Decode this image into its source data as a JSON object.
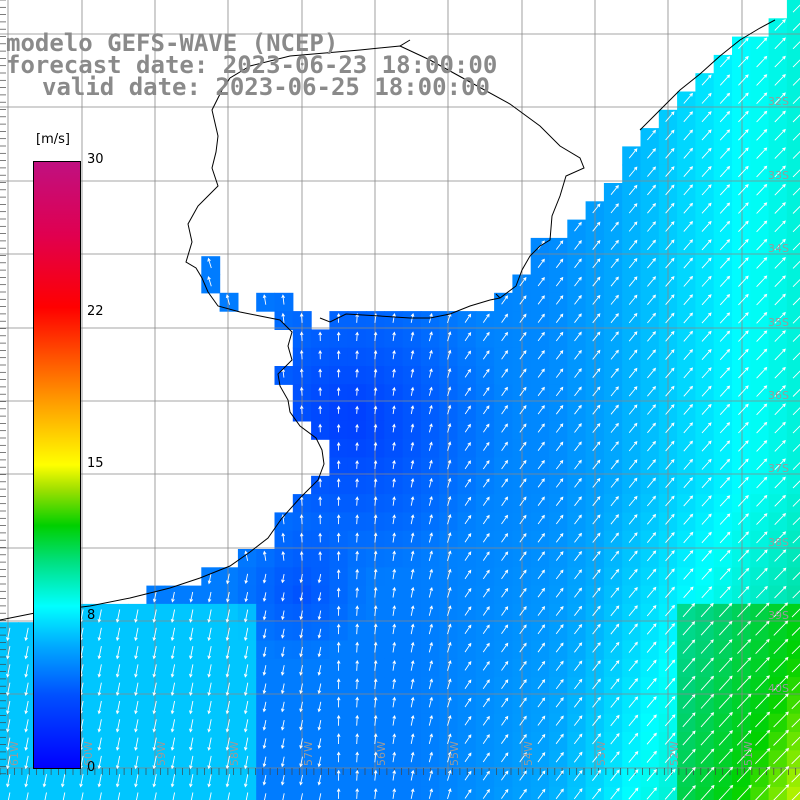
{
  "title": {
    "model": "modelo GEFS-WAVE (NCEP)",
    "forecast": "forecast date: 2023-06-23 18:00:00",
    "valid": "valid date: 2023-06-25 18:00:00"
  },
  "colorbar": {
    "unit": "[m/s]",
    "ticks": [
      "30",
      "22",
      "15",
      "8",
      "0"
    ],
    "tick_values": [
      30,
      22,
      15,
      8,
      0
    ],
    "range": [
      0,
      30
    ],
    "colors": [
      "#0000ff",
      "#00a8ff",
      "#00ffff",
      "#00d000",
      "#ffff00",
      "#ff8000",
      "#ff0000",
      "#c01080"
    ]
  },
  "map": {
    "lat_labels": [
      "32S",
      "33S",
      "34S",
      "35S",
      "36S",
      "37S",
      "38S",
      "39S",
      "40S"
    ],
    "lon_labels": [
      "61W",
      "60W",
      "59W",
      "58W",
      "57W",
      "56W",
      "55W",
      "54W",
      "53W",
      "52W",
      "51W"
    ],
    "land_color": "#ffffff",
    "grid_color": "#888888"
  }
}
